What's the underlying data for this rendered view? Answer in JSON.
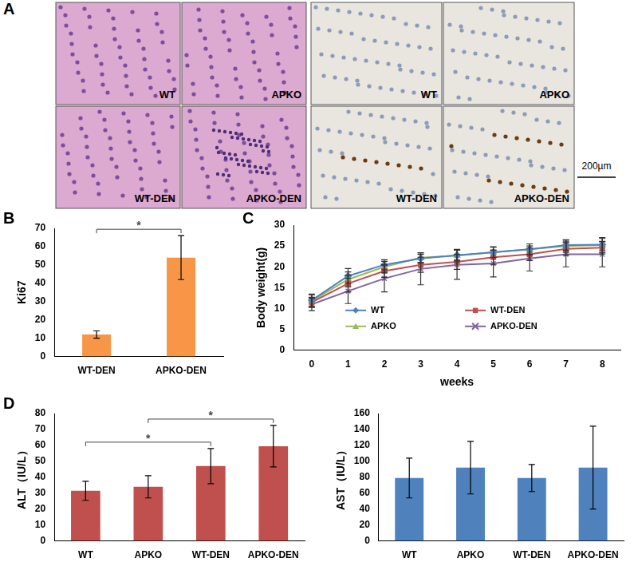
{
  "image_panel": {
    "annotations": [
      "A"
    ],
    "image_labels": [
      "WT",
      "APKO",
      "WT-DEN",
      "APKO-DEN",
      "WT",
      "APKO",
      "WT-DEN",
      "APKO-DEN"
    ],
    "scale_bar": "200µm"
  },
  "chart_data": [
    {
      "type": "bar",
      "annotations": [
        "B"
      ],
      "categories": [
        "WT-DEN",
        "APKO-DEN"
      ],
      "values": [
        12,
        54
      ],
      "errors": [
        2,
        12
      ],
      "color": "#f79646",
      "y_label": "Ki67",
      "ylim": [
        0,
        70
      ],
      "yticks": [
        0,
        10,
        20,
        30,
        40,
        50,
        60,
        70
      ],
      "grid": false,
      "significance": [
        {
          "between": [
            "WT-DEN",
            "APKO-DEN"
          ],
          "label": "*"
        }
      ]
    },
    {
      "type": "line",
      "annotations": [
        "C"
      ],
      "x": [
        0,
        1,
        2,
        3,
        4,
        5,
        6,
        7,
        8
      ],
      "series": [
        {
          "name": "WT",
          "color": "#4f81bd",
          "marker": "diamond",
          "values": [
            12,
            17.8,
            20.5,
            22,
            22.8,
            23.5,
            24.2,
            25.2,
            25.3
          ],
          "errors": [
            1.5,
            1.8,
            1.2,
            1.0,
            1.3,
            1.2,
            1.3,
            1.2,
            1.5
          ]
        },
        {
          "name": "WT-DEN",
          "color": "#c0504d",
          "marker": "square",
          "values": [
            11.5,
            16,
            19,
            20.5,
            21.2,
            22.3,
            23,
            24.3,
            24.6
          ],
          "errors": [
            1.2,
            2.0,
            1.5,
            1.8,
            1.8,
            1.7,
            1.5,
            1.5,
            1.5
          ]
        },
        {
          "name": "APKO",
          "color": "#9bbb59",
          "marker": "triangle",
          "values": [
            11.8,
            17,
            20,
            22.2,
            22.7,
            23.5,
            24.2,
            25,
            25.2
          ],
          "errors": [
            1.5,
            1.8,
            1.3,
            1.2,
            1.5,
            1.3,
            1.3,
            1.5,
            1.8
          ]
        },
        {
          "name": "APKO-DEN",
          "color": "#8064a2",
          "marker": "x",
          "values": [
            11,
            14.2,
            17.2,
            19.5,
            20.5,
            20.8,
            22,
            23,
            23
          ],
          "errors": [
            1.5,
            3.0,
            3.2,
            3.8,
            3.5,
            3.2,
            3.0,
            3.0,
            3.0
          ]
        }
      ],
      "x_label": "weeks",
      "y_label": "Body weight(g)",
      "xlim": [
        -0.5,
        8.5
      ],
      "xticks": [
        0,
        1,
        2,
        3,
        4,
        5,
        6,
        7,
        8
      ],
      "ylim": [
        0,
        30
      ],
      "yticks": [
        0,
        5,
        10,
        15,
        20,
        25,
        30
      ],
      "grid": false,
      "legend": "lower center"
    },
    {
      "type": "bar",
      "annotations": [
        "D"
      ],
      "categories": [
        "WT",
        "APKO",
        "WT-DEN",
        "APKO-DEN"
      ],
      "values": [
        31.5,
        34,
        47,
        59.5
      ],
      "errors": [
        6,
        7,
        11,
        13
      ],
      "color": "#c0504d",
      "y_label": "ALT（IU/L）",
      "ylim": [
        0,
        80
      ],
      "yticks": [
        0,
        10,
        20,
        30,
        40,
        50,
        60,
        70,
        80
      ],
      "grid": false,
      "significance": [
        {
          "between": [
            "WT",
            "WT-DEN"
          ],
          "label": "*"
        },
        {
          "between": [
            "APKO",
            "APKO-DEN"
          ],
          "label": "*"
        }
      ]
    },
    {
      "type": "bar",
      "categories": [
        "WT",
        "APKO",
        "WT-DEN",
        "APKO-DEN"
      ],
      "values": [
        79,
        92,
        79,
        92
      ],
      "errors": [
        25,
        33,
        17,
        52
      ],
      "color": "#4f81bd",
      "y_label": "AST（IU/L）",
      "ylim": [
        0,
        160
      ],
      "yticks": [
        0,
        20,
        40,
        60,
        80,
        100,
        120,
        140,
        160
      ],
      "grid": false
    }
  ]
}
